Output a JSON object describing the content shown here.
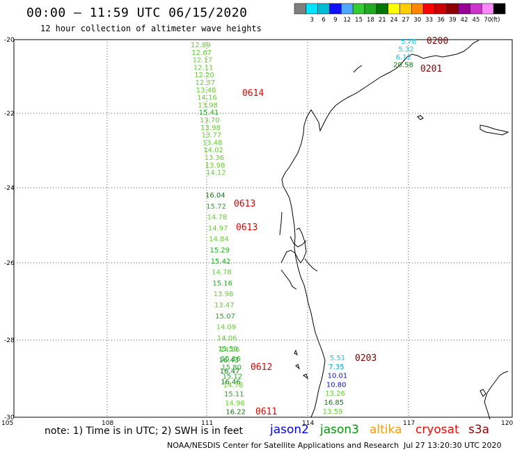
{
  "header": {
    "title": "00:00 – 11:59 UTC 06/15/2020",
    "subtitle": "12 hour collection of altimeter wave heights"
  },
  "colorbar": {
    "colors": [
      "#7f7f7f",
      "#00e5ff",
      "#00bcd4",
      "#1010ff",
      "#4ea6ff",
      "#33cc33",
      "#22aa22",
      "#007700",
      "#ffff00",
      "#ffcc00",
      "#ff8800",
      "#ff0000",
      "#cc0000",
      "#8b0000",
      "#990099",
      "#cc33cc",
      "#ff88ff",
      "#000000"
    ],
    "labels": [
      "3",
      "6",
      "9",
      "12",
      "15",
      "18",
      "21",
      "24",
      "27",
      "30",
      "33",
      "36",
      "39",
      "42",
      "45",
      "70"
    ],
    "unit": "(ft)"
  },
  "axes": {
    "lat_labels": [
      "-20",
      "-22",
      "-24",
      "-26",
      "-28",
      "-30"
    ],
    "lon_labels": [
      "105",
      "108",
      "111",
      "114",
      "117",
      "120"
    ]
  },
  "tracks": [
    {
      "name": "track-0614",
      "id_label": "0614",
      "id_color": "#e00000",
      "values": [
        {
          "text": "12.89",
          "color": "#66cc33"
        },
        {
          "text": "12.67",
          "color": "#66cc33"
        },
        {
          "text": "12.17",
          "color": "#66cc33"
        },
        {
          "text": "12.11",
          "color": "#66cc33"
        },
        {
          "text": "12.20",
          "color": "#66cc33"
        },
        {
          "text": "12.37",
          "color": "#66cc33"
        },
        {
          "text": "13.48",
          "color": "#66cc33"
        },
        {
          "text": "14.16",
          "color": "#66cc33"
        },
        {
          "text": "13.98",
          "color": "#66cc33"
        },
        {
          "text": "15.41",
          "color": "#22aa22"
        },
        {
          "text": "13.70",
          "color": "#66cc33"
        },
        {
          "text": "13.98",
          "color": "#66cc33"
        },
        {
          "text": "13.77",
          "color": "#66cc33"
        },
        {
          "text": "13.48",
          "color": "#66cc33"
        },
        {
          "text": "14.02",
          "color": "#66cc33"
        },
        {
          "text": "13.36",
          "color": "#66cc33"
        },
        {
          "text": "13.98",
          "color": "#66cc33"
        },
        {
          "text": "14.12",
          "color": "#66cc33"
        }
      ]
    },
    {
      "name": "track-0613",
      "id_label": "0613",
      "id_color": "#e00000",
      "values": [
        {
          "text": "16.04",
          "color": "#117711"
        },
        {
          "text": "15.72",
          "color": "#22aa22"
        },
        {
          "text": "14.78",
          "color": "#66cc33"
        },
        {
          "text": "14.97",
          "color": "#66cc33"
        },
        {
          "text": "14.84",
          "color": "#66cc33"
        },
        {
          "text": "15.29",
          "color": "#22aa22"
        },
        {
          "text": "15.42",
          "color": "#22aa22"
        },
        {
          "text": "14.78",
          "color": "#66cc33"
        },
        {
          "text": "15.16",
          "color": "#22aa22"
        },
        {
          "text": "13.98",
          "color": "#66cc33"
        },
        {
          "text": "13.47",
          "color": "#66cc33"
        },
        {
          "text": "15.07",
          "color": "#22aa22"
        },
        {
          "text": "14.09",
          "color": "#66cc33"
        },
        {
          "text": "14.06",
          "color": "#66cc33"
        },
        {
          "text": "15.50",
          "color": "#22aa22"
        },
        {
          "text": "16.43",
          "color": "#117711"
        },
        {
          "text": "16.47",
          "color": "#117711"
        },
        {
          "text": "16.46",
          "color": "#117711"
        }
      ],
      "second_id_label": "0613"
    },
    {
      "name": "track-0612",
      "id_label": "0612",
      "id_color": "#e00000",
      "values": [
        {
          "text": "14.86",
          "color": "#66cc33"
        },
        {
          "text": "15.16",
          "color": "#22aa22"
        },
        {
          "text": "15.80",
          "color": "#22aa22"
        },
        {
          "text": "15.12",
          "color": "#22aa22"
        },
        {
          "text": "14.78",
          "color": "#66cc33"
        },
        {
          "text": "15.11",
          "color": "#22aa22"
        },
        {
          "text": "14.96",
          "color": "#66cc33"
        },
        {
          "text": "16.22",
          "color": "#117711"
        }
      ],
      "last_id_label": "0611"
    },
    {
      "name": "track-0203",
      "id_label": "0203",
      "id_color": "#7f0000",
      "values": [
        {
          "text": "5.51",
          "color": "#00ccee"
        },
        {
          "text": "7.35",
          "color": "#00a8cc"
        },
        {
          "text": "10.01",
          "color": "#1010cc"
        },
        {
          "text": "10.80",
          "color": "#1010cc"
        },
        {
          "text": "13.26",
          "color": "#66cc33"
        },
        {
          "text": "16.85",
          "color": "#117711"
        },
        {
          "text": "13.59",
          "color": "#66cc33"
        }
      ]
    },
    {
      "name": "track-0200",
      "id_label": "0200",
      "id_color": "#7f0000",
      "values": [
        {
          "text": "5.76",
          "color": "#00ccee"
        },
        {
          "text": "5.32",
          "color": "#00ccee"
        },
        {
          "text": "6.12",
          "color": "#00ccee"
        },
        {
          "text": "20.58",
          "color": "#117711"
        }
      ],
      "second_id_label": "0201"
    }
  ],
  "note": "note: 1) Time is in UTC; 2) SWH is in feet",
  "satellites": [
    {
      "name": "jason2",
      "color": "#0000ff"
    },
    {
      "name": "jason3",
      "color": "#009900"
    },
    {
      "name": "altika",
      "color": "#ff9900"
    },
    {
      "name": "cryosat",
      "color": "#ff0000"
    },
    {
      "name": "s3a",
      "color": "#990000"
    }
  ],
  "footer": {
    "agency": "NOAA/NESDIS Center for Satellite Applications and Research",
    "timestamp": "Jul 27 13:20:30 UTC 2020"
  }
}
